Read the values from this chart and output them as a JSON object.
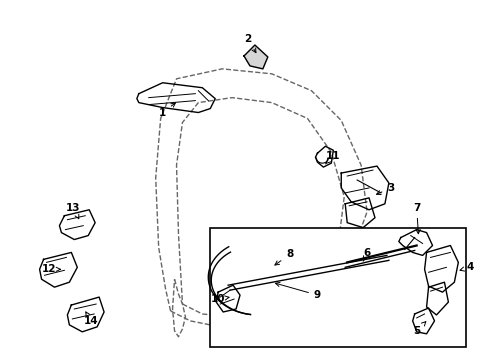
{
  "background_color": "#ffffff",
  "line_color": "#000000",
  "dashed_color": "#666666",
  "figsize": [
    4.89,
    3.6
  ],
  "dpi": 100,
  "label_data": [
    [
      "1",
      162,
      112,
      178,
      100
    ],
    [
      "2",
      248,
      38,
      258,
      55
    ],
    [
      "3",
      392,
      188,
      374,
      196
    ],
    [
      "4",
      472,
      268,
      458,
      272
    ],
    [
      "5",
      418,
      332,
      430,
      320
    ],
    [
      "6",
      368,
      254,
      364,
      262
    ],
    [
      "7",
      418,
      208,
      420,
      238
    ],
    [
      "8",
      290,
      255,
      272,
      268
    ],
    [
      "9",
      318,
      296,
      272,
      283
    ],
    [
      "10",
      218,
      300,
      230,
      298
    ],
    [
      "11",
      334,
      156,
      326,
      164
    ],
    [
      "12",
      48,
      270,
      60,
      270
    ],
    [
      "13",
      72,
      208,
      78,
      220
    ],
    [
      "14",
      90,
      322,
      84,
      312
    ]
  ]
}
